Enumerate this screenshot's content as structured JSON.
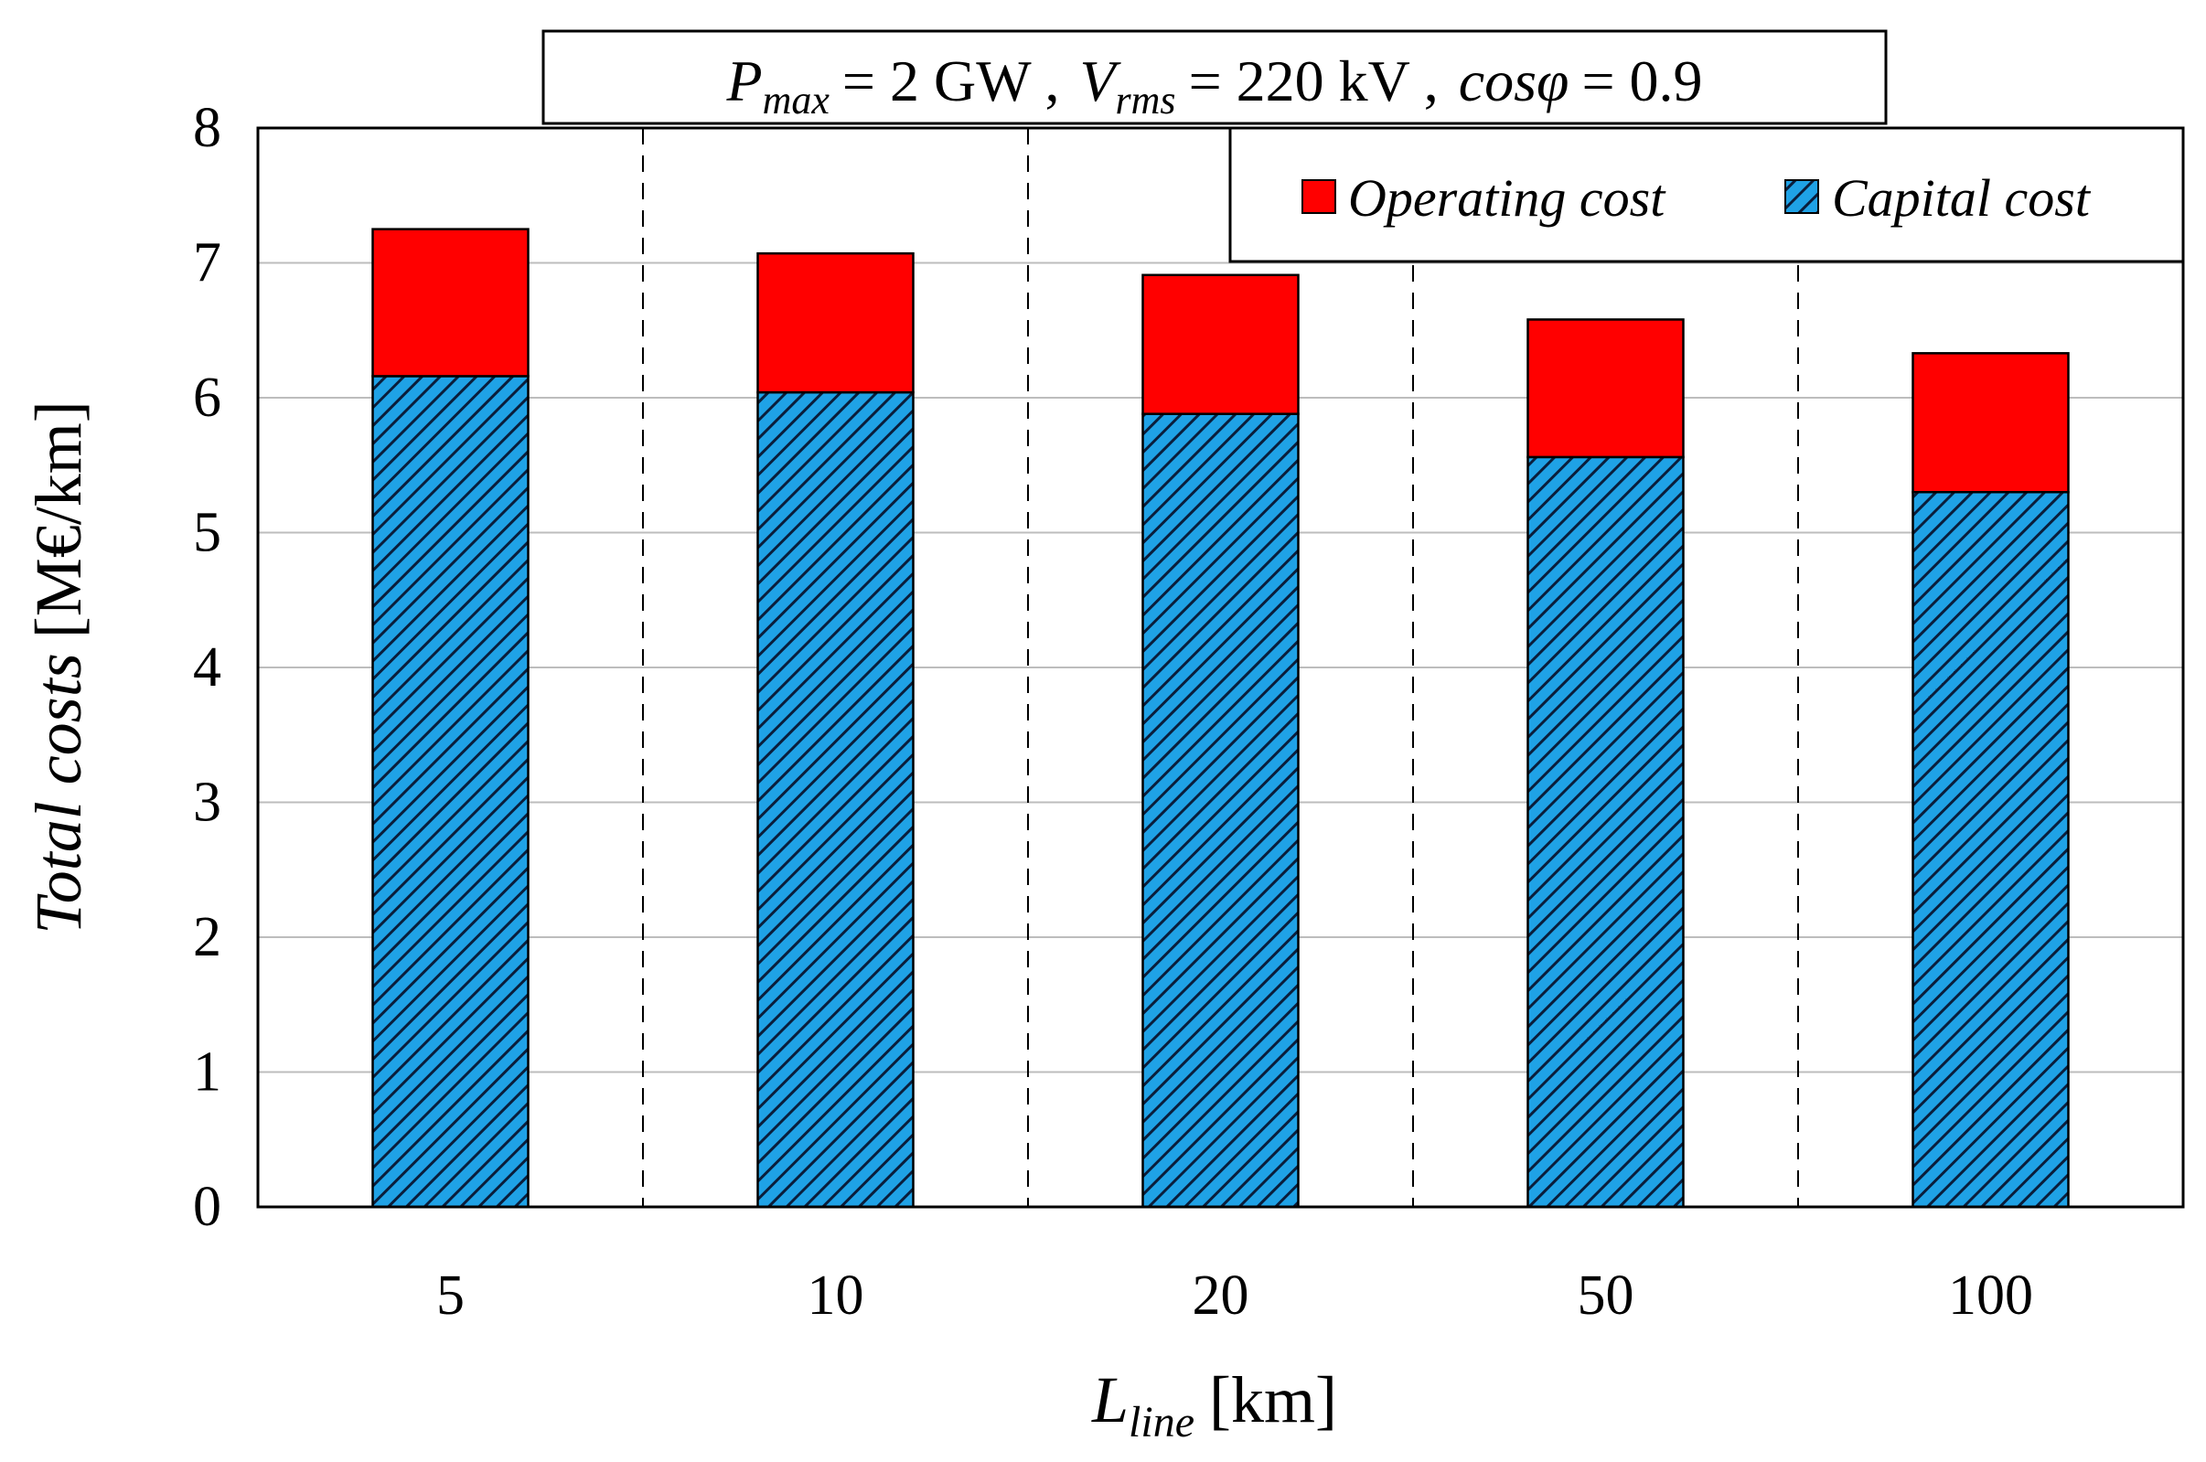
{
  "chart_data": {
    "type": "bar",
    "stacked": true,
    "title": {
      "p_symbol": "P",
      "p_sub": "max",
      "p_value": "= 2 GW  ,",
      "v_symbol": "V",
      "v_sub": "rms",
      "v_value": "= 220 kV ,",
      "cos_symbol": "cosφ",
      "cos_value": "= 0.9"
    },
    "xlabel": {
      "symbol": "L",
      "sub": "line",
      "unit": "[km]"
    },
    "ylabel": {
      "italic": "Total costs",
      "unit": "[M€/km]"
    },
    "categories": [
      "5",
      "10",
      "20",
      "50",
      "100"
    ],
    "ylim": [
      0,
      8
    ],
    "yticks": [
      "0",
      "1",
      "2",
      "3",
      "4",
      "5",
      "6",
      "7",
      "8"
    ],
    "grid": true,
    "legend_position": "top-right",
    "series": [
      {
        "name": "Capital cost",
        "color": "#1fa2e6",
        "hatch": "diagonal",
        "values": [
          6.16,
          6.04,
          5.88,
          5.56,
          5.3
        ]
      },
      {
        "name": "Operating cost",
        "color": "#ff0000",
        "values": [
          1.09,
          1.03,
          1.03,
          1.02,
          1.03
        ]
      }
    ]
  }
}
